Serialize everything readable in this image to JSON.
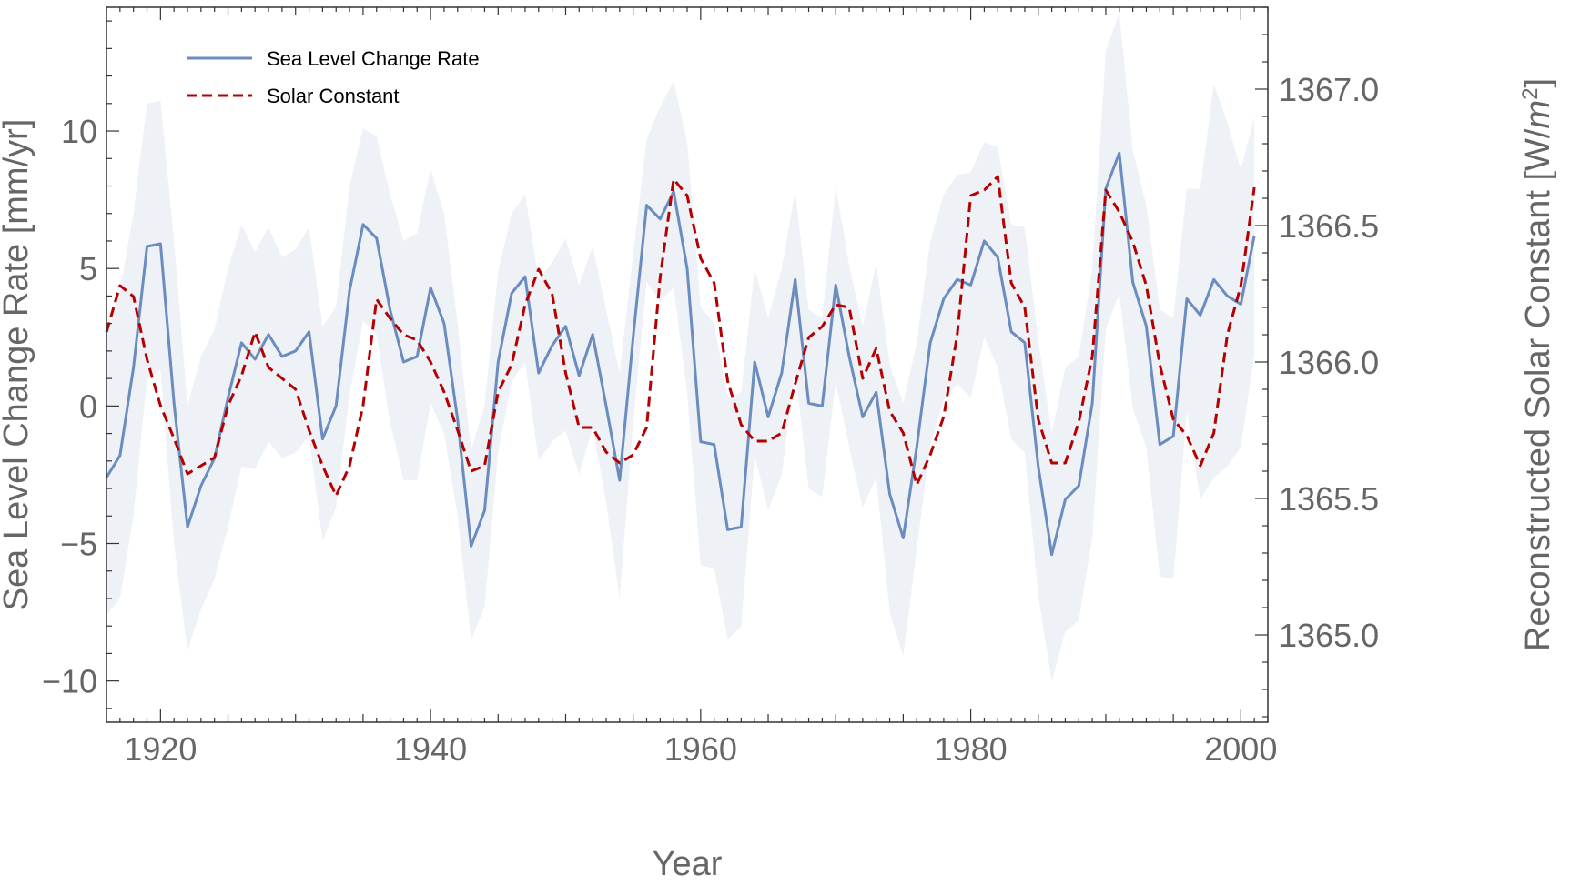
{
  "chart_data": {
    "type": "line",
    "title": "",
    "xlabel": "Year",
    "ylabel_left": "Sea Level Change Rate [mm/yr]",
    "ylabel_right_prefix": "Reconstructed Solar Constant [W/",
    "ylabel_right_unit_base": "m",
    "ylabel_right_unit_exp": "2",
    "ylabel_right_suffix": "]",
    "xlim": [
      1916,
      2002
    ],
    "ylim_left": [
      -11.5,
      14.5
    ],
    "ylim_right": [
      1364.68,
      1367.3
    ],
    "x_ticks": [
      1920,
      1940,
      1960,
      1980,
      2000
    ],
    "y_ticks_left": [
      -10,
      -5,
      0,
      5,
      10
    ],
    "y_ticks_left_labels": [
      "−10",
      "−5",
      "0",
      "5",
      "10"
    ],
    "y_ticks_right": [
      1365.0,
      1365.5,
      1366.0,
      1366.5,
      1367.0
    ],
    "y_ticks_right_labels": [
      "1365.0",
      "1365.5",
      "1366.0",
      "1366.5",
      "1367.0"
    ],
    "grid": false,
    "legend_position": "top-left",
    "colors": {
      "sea_level": "#6b8cbe",
      "solar": "#b40000",
      "band": "#eef1f6",
      "axis": "#333333",
      "text": "#666666"
    },
    "series": [
      {
        "name": "Sea Level Change Rate",
        "axis": "left",
        "style": "solid",
        "x": [
          1916,
          1917,
          1918,
          1919,
          1920,
          1921,
          1922,
          1923,
          1924,
          1925,
          1926,
          1927,
          1928,
          1929,
          1930,
          1931,
          1932,
          1933,
          1934,
          1935,
          1936,
          1937,
          1938,
          1939,
          1940,
          1941,
          1942,
          1943,
          1944,
          1945,
          1946,
          1947,
          1948,
          1949,
          1950,
          1951,
          1952,
          1953,
          1954,
          1955,
          1956,
          1957,
          1958,
          1959,
          1960,
          1961,
          1962,
          1963,
          1964,
          1965,
          1966,
          1967,
          1968,
          1969,
          1970,
          1971,
          1972,
          1973,
          1974,
          1975,
          1976,
          1977,
          1978,
          1979,
          1980,
          1981,
          1982,
          1983,
          1984,
          1985,
          1986,
          1987,
          1988,
          1989,
          1990,
          1991,
          1992,
          1993,
          1994,
          1995,
          1996,
          1997,
          1998,
          1999,
          2000,
          2001
        ],
        "values": [
          -2.6,
          -1.8,
          1.4,
          5.8,
          5.9,
          0.1,
          -4.4,
          -2.9,
          -1.9,
          0.3,
          2.3,
          1.7,
          2.6,
          1.8,
          2.0,
          2.7,
          -1.2,
          0.0,
          4.2,
          6.6,
          6.1,
          3.5,
          1.6,
          1.8,
          4.3,
          3.0,
          -0.5,
          -5.1,
          -3.8,
          1.6,
          4.1,
          4.7,
          1.2,
          2.2,
          2.9,
          1.1,
          2.6,
          0.0,
          -2.7,
          2.5,
          7.3,
          6.8,
          7.8,
          5.0,
          -1.3,
          -1.4,
          -4.5,
          -4.4,
          1.6,
          -0.4,
          1.2,
          4.6,
          0.1,
          0.0,
          4.4,
          1.8,
          -0.4,
          0.5,
          -3.2,
          -4.8,
          -1.5,
          2.3,
          3.9,
          4.6,
          4.4,
          6.0,
          5.4,
          2.7,
          2.3,
          -2.2,
          -5.4,
          -3.4,
          -2.9,
          0.1,
          7.9,
          9.2,
          4.5,
          2.9,
          -1.4,
          -1.1,
          3.9,
          3.3,
          4.6,
          4.0,
          3.7,
          6.2
        ]
      },
      {
        "name": "Solar Constant",
        "axis": "right",
        "style": "dashed",
        "x": [
          1916,
          1917,
          1918,
          1919,
          1920,
          1921,
          1922,
          1923,
          1924,
          1925,
          1926,
          1927,
          1928,
          1929,
          1930,
          1931,
          1932,
          1933,
          1934,
          1935,
          1936,
          1937,
          1938,
          1939,
          1940,
          1941,
          1942,
          1943,
          1944,
          1945,
          1946,
          1947,
          1948,
          1949,
          1950,
          1951,
          1952,
          1953,
          1954,
          1955,
          1956,
          1957,
          1958,
          1959,
          1960,
          1961,
          1962,
          1963,
          1964,
          1965,
          1966,
          1967,
          1968,
          1969,
          1970,
          1971,
          1972,
          1973,
          1974,
          1975,
          1976,
          1977,
          1978,
          1979,
          1980,
          1981,
          1982,
          1983,
          1984,
          1985,
          1986,
          1987,
          1988,
          1989,
          1990,
          1991,
          1992,
          1993,
          1994,
          1995,
          1996,
          1997,
          1998,
          1999,
          2000,
          2001
        ],
        "values": [
          1366.11,
          1366.28,
          1366.24,
          1366.01,
          1365.84,
          1365.72,
          1365.59,
          1365.62,
          1365.65,
          1365.84,
          1365.95,
          1366.11,
          1365.98,
          1365.94,
          1365.9,
          1365.75,
          1365.62,
          1365.51,
          1365.62,
          1365.84,
          1366.23,
          1366.16,
          1366.1,
          1366.08,
          1366.0,
          1365.89,
          1365.75,
          1365.6,
          1365.62,
          1365.89,
          1365.99,
          1366.21,
          1366.34,
          1366.25,
          1365.96,
          1365.76,
          1365.76,
          1365.67,
          1365.63,
          1365.66,
          1365.76,
          1366.31,
          1366.67,
          1366.61,
          1366.38,
          1366.29,
          1365.93,
          1365.77,
          1365.71,
          1365.71,
          1365.74,
          1365.92,
          1366.09,
          1366.13,
          1366.21,
          1366.2,
          1365.94,
          1366.05,
          1365.82,
          1365.74,
          1365.55,
          1365.66,
          1365.8,
          1366.1,
          1366.61,
          1366.63,
          1366.68,
          1366.29,
          1366.2,
          1365.79,
          1365.63,
          1365.63,
          1365.78,
          1366.02,
          1366.63,
          1366.55,
          1366.44,
          1366.28,
          1365.99,
          1365.79,
          1365.73,
          1365.62,
          1365.74,
          1366.1,
          1366.28,
          1366.64
        ]
      },
      {
        "name": "",
        "axis": "left",
        "style": "band",
        "x": [
          1916,
          1917,
          1918,
          1919,
          1920,
          1921,
          1922,
          1923,
          1924,
          1925,
          1926,
          1927,
          1928,
          1929,
          1930,
          1931,
          1932,
          1933,
          1934,
          1935,
          1936,
          1937,
          1938,
          1939,
          1940,
          1941,
          1942,
          1943,
          1944,
          1945,
          1946,
          1947,
          1948,
          1949,
          1950,
          1951,
          1952,
          1953,
          1954,
          1955,
          1956,
          1957,
          1958,
          1959,
          1960,
          1961,
          1962,
          1963,
          1964,
          1965,
          1966,
          1967,
          1968,
          1969,
          1970,
          1971,
          1972,
          1973,
          1974,
          1975,
          1976,
          1977,
          1978,
          1979,
          1980,
          1981,
          1982,
          1983,
          1984,
          1985,
          1986,
          1987,
          1988,
          1989,
          1990,
          1991,
          1992,
          1993,
          1994,
          1995,
          1996,
          1997,
          1998,
          1999,
          2000,
          2001
        ],
        "upper": [
          2.5,
          4.2,
          7.0,
          11.0,
          11.1,
          6.0,
          0.0,
          1.8,
          2.8,
          5.0,
          6.6,
          5.6,
          6.5,
          5.4,
          5.7,
          6.5,
          2.9,
          3.6,
          8.0,
          10.1,
          9.8,
          7.7,
          6.0,
          6.3,
          8.6,
          7.0,
          3.0,
          -1.6,
          0.0,
          4.9,
          7.0,
          7.7,
          4.6,
          5.2,
          6.1,
          4.4,
          5.8,
          3.5,
          1.2,
          5.5,
          9.7,
          10.9,
          11.8,
          9.6,
          3.6,
          3.0,
          0.3,
          0.5,
          5.0,
          3.2,
          5.0,
          7.8,
          3.5,
          3.2,
          8.0,
          5.1,
          2.9,
          5.2,
          1.5,
          0.1,
          2.3,
          6.0,
          7.7,
          8.4,
          8.5,
          9.6,
          9.4,
          6.6,
          6.5,
          2.4,
          -1.0,
          1.4,
          1.8,
          5.0,
          12.9,
          14.3,
          9.3,
          7.3,
          3.5,
          3.2,
          7.9,
          7.9,
          11.7,
          10.3,
          8.6,
          10.5
        ],
        "lower": [
          -7.6,
          -7.0,
          -4.0,
          1.0,
          1.3,
          -5.0,
          -8.9,
          -7.4,
          -6.3,
          -4.4,
          -2.2,
          -2.3,
          -1.3,
          -1.9,
          -1.7,
          -1.1,
          -4.9,
          -3.7,
          0.4,
          3.1,
          2.6,
          -0.6,
          -2.7,
          -2.7,
          0.1,
          -1.0,
          -4.0,
          -8.5,
          -7.3,
          -1.7,
          0.9,
          1.6,
          -2.0,
          -1.3,
          -0.9,
          -2.5,
          -0.8,
          -3.5,
          -7.0,
          -0.6,
          4.5,
          3.8,
          4.3,
          0.5,
          -5.8,
          -5.9,
          -8.5,
          -8.0,
          -1.8,
          -3.8,
          -2.5,
          1.3,
          -3.0,
          -3.3,
          0.9,
          -1.5,
          -3.7,
          -2.6,
          -7.5,
          -9.1,
          -5.2,
          -1.4,
          0.2,
          0.8,
          0.3,
          2.5,
          1.4,
          -1.2,
          -1.7,
          -6.9,
          -10.0,
          -8.2,
          -7.8,
          -4.8,
          2.8,
          4.1,
          -0.1,
          -1.5,
          -6.2,
          -6.3,
          -0.2,
          -3.4,
          -2.6,
          -2.2,
          -1.5,
          1.9
        ]
      }
    ]
  }
}
